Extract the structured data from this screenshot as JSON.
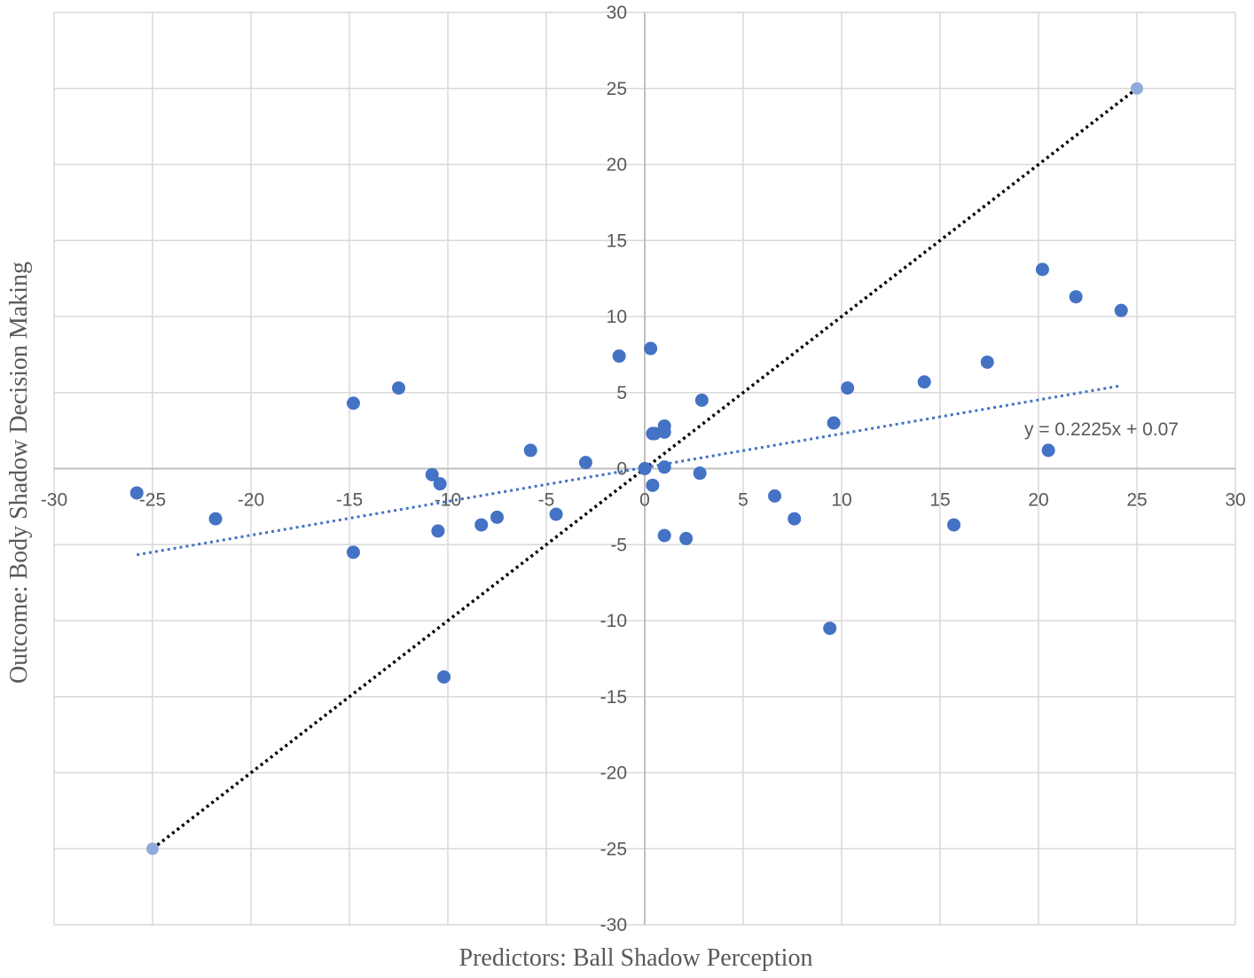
{
  "chart_data": {
    "type": "scatter",
    "title": "",
    "xlabel": "Predictors: Ball  Shadow Perception",
    "ylabel": "Outcome: Body Shadow Decision Making",
    "xlim": [
      -30,
      30
    ],
    "ylim": [
      -30,
      30
    ],
    "x_ticks": [
      -30,
      -25,
      -20,
      -15,
      -10,
      -5,
      0,
      5,
      10,
      15,
      20,
      25,
      30
    ],
    "y_ticks": [
      -30,
      -25,
      -20,
      -15,
      -10,
      -5,
      0,
      5,
      10,
      15,
      20,
      25,
      30
    ],
    "grid": true,
    "legend": "none",
    "colors": {
      "points": "#4472c4",
      "trendline": "#4472c4",
      "identity_line": "#000000",
      "identity_endpoints": "#8faadc",
      "grid": "#d9d9d9",
      "axis": "#bfbfbf"
    },
    "series": [
      {
        "points": [
          [
            -25.8,
            -1.6
          ],
          [
            -21.8,
            -3.3
          ],
          [
            -14.8,
            4.3
          ],
          [
            -14.8,
            -5.5
          ],
          [
            -12.5,
            5.3
          ],
          [
            -10.8,
            -0.4
          ],
          [
            -10.4,
            -1.0
          ],
          [
            -10.5,
            -4.1
          ],
          [
            -10.2,
            -13.7
          ],
          [
            -8.3,
            -3.7
          ],
          [
            -7.5,
            -3.2
          ],
          [
            -5.8,
            1.2
          ],
          [
            -4.5,
            -3.0
          ],
          [
            -3.0,
            0.4
          ],
          [
            -1.3,
            7.4
          ],
          [
            0.0,
            0.0
          ],
          [
            0.3,
            7.9
          ],
          [
            0.4,
            2.3
          ],
          [
            0.5,
            2.3
          ],
          [
            0.4,
            -1.1
          ],
          [
            1.0,
            2.4
          ],
          [
            1.0,
            2.8
          ],
          [
            1.0,
            0.1
          ],
          [
            1.0,
            -4.4
          ],
          [
            2.1,
            -4.6
          ],
          [
            2.8,
            -0.3
          ],
          [
            2.9,
            4.5
          ],
          [
            6.6,
            -1.8
          ],
          [
            7.6,
            -3.3
          ],
          [
            9.4,
            -10.5
          ],
          [
            9.6,
            3.0
          ],
          [
            10.3,
            5.3
          ],
          [
            14.2,
            5.7
          ],
          [
            15.7,
            -3.7
          ],
          [
            17.4,
            7.0
          ],
          [
            20.2,
            13.1
          ],
          [
            20.5,
            1.2
          ],
          [
            21.9,
            11.3
          ],
          [
            24.2,
            10.4
          ]
        ]
      }
    ],
    "identity_line": {
      "from": [
        -25,
        -25
      ],
      "to": [
        25,
        25
      ]
    },
    "trendline": {
      "slope": 0.2225,
      "intercept": 0.07,
      "x_range": [
        -25.8,
        24.2
      ],
      "label": "y = 0.2225x + 0.07"
    }
  }
}
